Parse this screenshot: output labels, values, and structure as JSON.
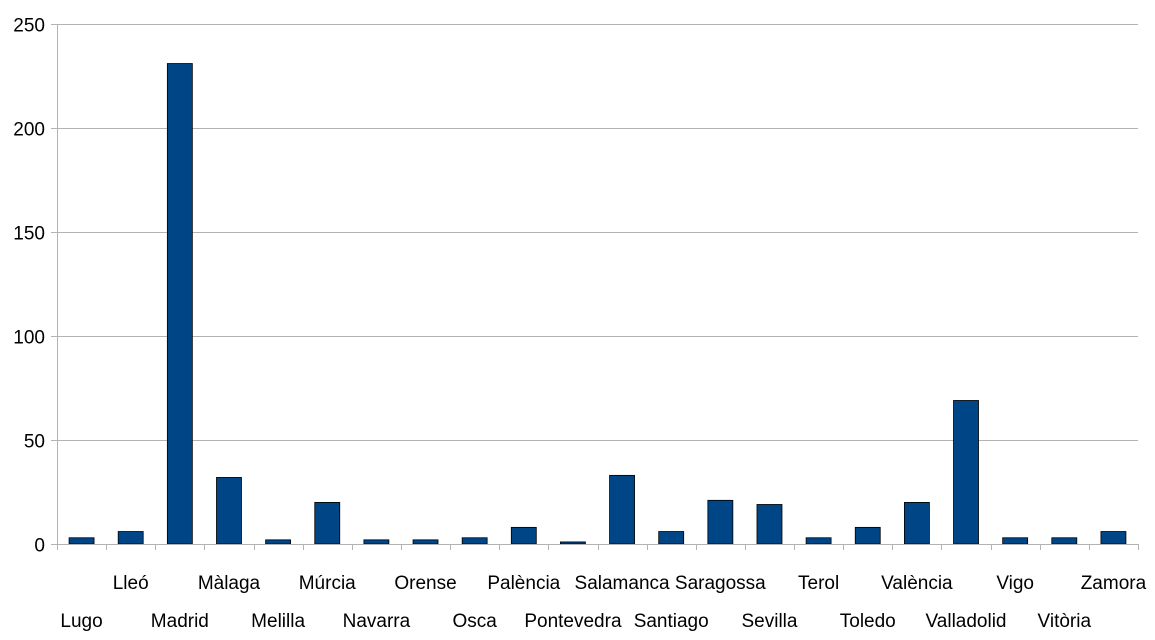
{
  "chart_data": {
    "type": "bar",
    "title": "",
    "xlabel": "",
    "ylabel": "",
    "ylim": [
      0,
      250
    ],
    "yticks": [
      0,
      50,
      100,
      150,
      200,
      250
    ],
    "grid": true,
    "legend": "none",
    "bar_color": "#004586",
    "grid_color": "#b3b3b3",
    "categories": [
      "Lugo",
      "Lleó",
      "Madrid",
      "Màlaga",
      "Melilla",
      "Múrcia",
      "Navarra",
      "Orense",
      "Osca",
      "Palència",
      "Pontevedra",
      "Salamanca",
      "Santiago",
      "Saragossa",
      "Sevilla",
      "Terol",
      "Toledo",
      "València",
      "Valladolid",
      "Vigo",
      "Vitòria",
      "Zamora"
    ],
    "values": [
      3,
      6,
      231,
      32,
      2,
      20,
      2,
      2,
      3,
      8,
      1,
      33,
      6,
      21,
      19,
      3,
      8,
      20,
      69,
      3,
      3,
      6
    ]
  }
}
